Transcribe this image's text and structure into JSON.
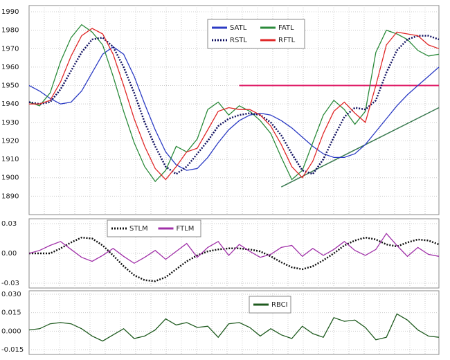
{
  "chart_data": [
    {
      "type": "line",
      "ylim": [
        1880,
        1990
      ],
      "yticks": [
        1890,
        1900,
        1910,
        1920,
        1930,
        1940,
        1950,
        1960,
        1970,
        1980,
        1990
      ],
      "grid": true,
      "reference_line": {
        "value": 1950,
        "color": "#e0206a"
      },
      "trendline": {
        "x": [
          24,
          39
        ],
        "values": [
          1895,
          1938
        ],
        "color": "#3a7a50"
      },
      "series": [
        {
          "name": "SATL",
          "color": "#2b3bc4",
          "style": "solid",
          "values": [
            1950,
            1947,
            1943,
            1940,
            1941,
            1947,
            1957,
            1967,
            1971,
            1967,
            1955,
            1940,
            1926,
            1914,
            1907,
            1904,
            1905,
            1911,
            1919,
            1926,
            1931,
            1934,
            1935,
            1934,
            1931,
            1927,
            1922,
            1917,
            1913,
            1911,
            1911,
            1913,
            1918,
            1925,
            1932,
            1939,
            1945,
            1950,
            1955,
            1960
          ]
        },
        {
          "name": "FATL",
          "color": "#2a8a3a",
          "style": "solid",
          "values": [
            1941,
            1939,
            1946,
            1963,
            1976,
            1983,
            1979,
            1972,
            1955,
            1936,
            1919,
            1906,
            1898,
            1904,
            1917,
            1914,
            1921,
            1937,
            1941,
            1934,
            1939,
            1936,
            1931,
            1924,
            1911,
            1899,
            1904,
            1919,
            1934,
            1942,
            1937,
            1929,
            1936,
            1968,
            1980,
            1978,
            1975,
            1969,
            1966,
            1967
          ]
        },
        {
          "name": "RSTL",
          "color": "#101060",
          "style": "dotted",
          "values": [
            1941,
            1940,
            1941,
            1948,
            1958,
            1968,
            1975,
            1976,
            1971,
            1960,
            1946,
            1930,
            1917,
            1906,
            1902,
            1906,
            1913,
            1920,
            1928,
            1932,
            1934,
            1935,
            1934,
            1930,
            1923,
            1913,
            1904,
            1902,
            1910,
            1922,
            1933,
            1938,
            1937,
            1942,
            1957,
            1969,
            1975,
            1977,
            1977,
            1975
          ]
        },
        {
          "name": "RFTL",
          "color": "#e02828",
          "style": "solid",
          "values": [
            1940,
            1940,
            1942,
            1952,
            1966,
            1977,
            1981,
            1978,
            1967,
            1950,
            1932,
            1917,
            1905,
            1899,
            1906,
            1914,
            1916,
            1926,
            1936,
            1938,
            1937,
            1937,
            1934,
            1928,
            1918,
            1906,
            1900,
            1909,
            1924,
            1936,
            1941,
            1935,
            1930,
            1950,
            1972,
            1979,
            1978,
            1977,
            1972,
            1970
          ]
        }
      ]
    },
    {
      "type": "line",
      "ylim": [
        -0.03,
        0.03
      ],
      "yticks": [
        -0.03,
        {
          "value": 0,
          "label": "0.00"
        },
        0.03
      ],
      "grid": true,
      "series": [
        {
          "name": "STLM",
          "color": "#101010",
          "style": "dotted",
          "values": [
            0,
            0,
            0,
            0.005,
            0.011,
            0.016,
            0.015,
            0.008,
            -0.002,
            -0.013,
            -0.022,
            -0.027,
            -0.028,
            -0.024,
            -0.016,
            -0.008,
            -0.002,
            0.002,
            0.004,
            0.005,
            0.005,
            0.004,
            0.002,
            -0.003,
            -0.009,
            -0.014,
            -0.016,
            -0.013,
            -0.007,
            0,
            0.008,
            0.013,
            0.016,
            0.014,
            0.009,
            0.007,
            0.011,
            0.014,
            0.013,
            0.009
          ]
        },
        {
          "name": "FTLM",
          "color": "#a030a8",
          "style": "solid",
          "values": [
            0,
            0.003,
            0.008,
            0.012,
            0.004,
            -0.004,
            -0.008,
            -0.002,
            0.005,
            -0.003,
            -0.01,
            -0.004,
            0.003,
            -0.006,
            0.002,
            0.01,
            -0.004,
            0.006,
            0.012,
            -0.002,
            0.009,
            0.002,
            -0.004,
            -0.001,
            0.006,
            0.008,
            -0.003,
            0.005,
            -0.002,
            0.004,
            0.012,
            0.003,
            -0.002,
            0.004,
            0.02,
            0.008,
            -0.003,
            0.006,
            -0.001,
            -0.003
          ]
        }
      ]
    },
    {
      "type": "line",
      "ylim": [
        -0.015,
        0.03
      ],
      "yticks": [
        -0.015,
        {
          "value": 0,
          "label": "0.000"
        },
        0.015,
        {
          "value": 0.03,
          "label": "0.030"
        }
      ],
      "grid": true,
      "series": [
        {
          "name": "RBCI",
          "color": "#1e5a1e",
          "style": "solid",
          "values": [
            0.001,
            0.002,
            0.006,
            0.007,
            0.006,
            0.002,
            -0.004,
            -0.008,
            -0.003,
            0.002,
            -0.006,
            -0.004,
            0.001,
            0.01,
            0.005,
            0.007,
            0.003,
            0.004,
            -0.005,
            0.006,
            0.007,
            0.003,
            -0.004,
            0.002,
            -0.003,
            -0.006,
            0.004,
            -0.002,
            -0.005,
            0.011,
            0.008,
            0.009,
            0.003,
            -0.007,
            -0.005,
            0.014,
            0.009,
            0.001,
            -0.004,
            -0.005
          ]
        }
      ]
    }
  ]
}
